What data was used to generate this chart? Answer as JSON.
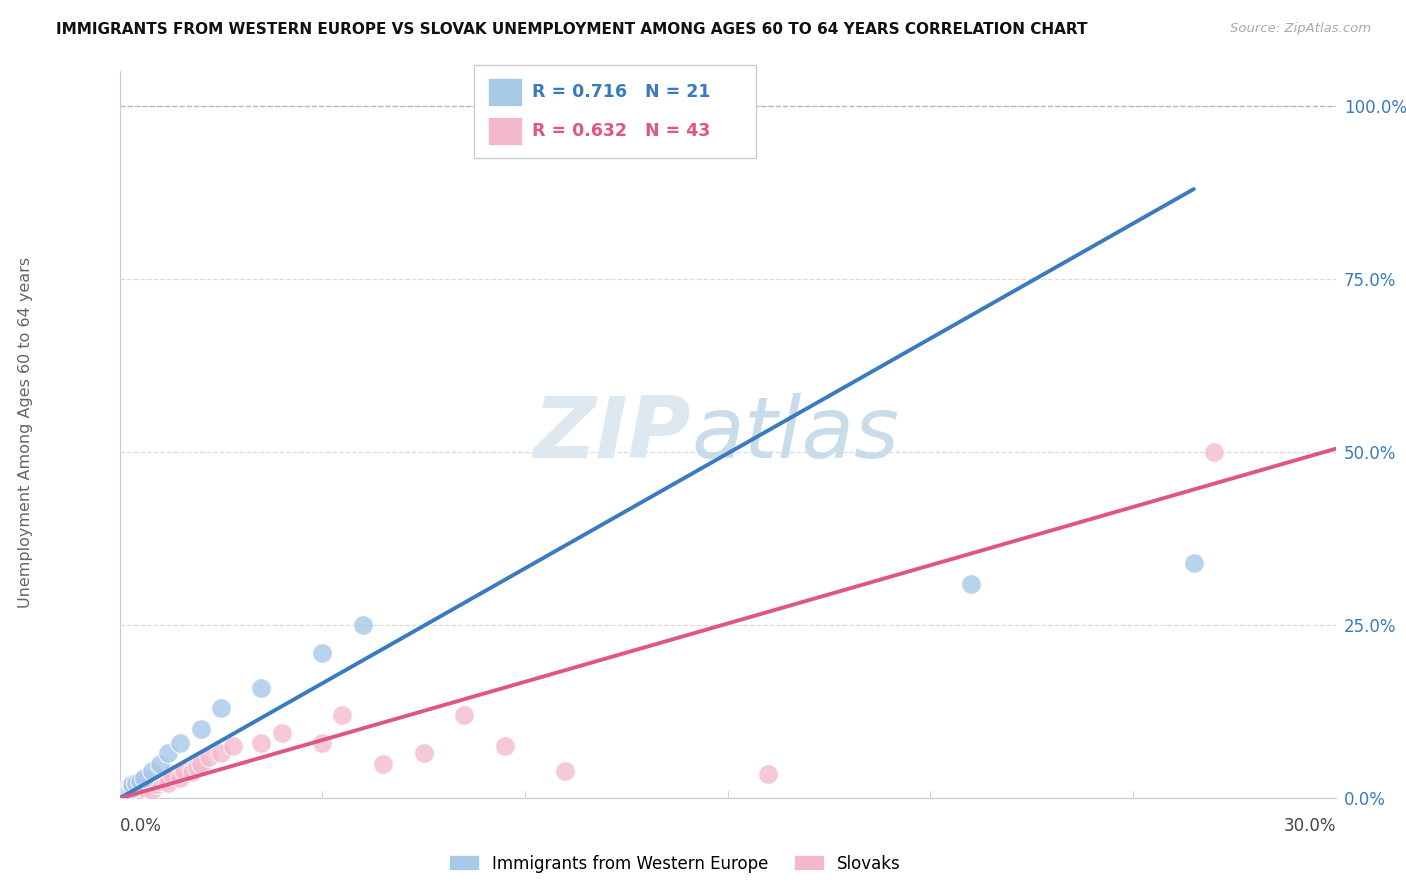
{
  "title": "IMMIGRANTS FROM WESTERN EUROPE VS SLOVAK UNEMPLOYMENT AMONG AGES 60 TO 64 YEARS CORRELATION CHART",
  "source": "Source: ZipAtlas.com",
  "ylabel": "Unemployment Among Ages 60 to 64 years",
  "xmin": 0.0,
  "xmax": 0.3,
  "ymin": 0.0,
  "ymax": 1.05,
  "yticks": [
    0.0,
    0.25,
    0.5,
    0.75,
    1.0
  ],
  "ytick_labels": [
    "0.0%",
    "25.0%",
    "50.0%",
    "75.0%",
    "100.0%"
  ],
  "legend_blue_r": "R = 0.716",
  "legend_blue_n": "N = 21",
  "legend_pink_r": "R = 0.632",
  "legend_pink_n": "N = 43",
  "blue_color": "#a8c8e8",
  "pink_color": "#f4b8cc",
  "blue_line_color": "#3a7bbf",
  "pink_line_color": "#e05585",
  "blue_scatter_x": [
    0.0005,
    0.001,
    0.0015,
    0.002,
    0.0025,
    0.003,
    0.003,
    0.004,
    0.005,
    0.006,
    0.008,
    0.01,
    0.012,
    0.015,
    0.02,
    0.025,
    0.035,
    0.05,
    0.06,
    0.21,
    0.265
  ],
  "blue_scatter_y": [
    0.004,
    0.006,
    0.008,
    0.01,
    0.012,
    0.015,
    0.02,
    0.022,
    0.025,
    0.03,
    0.04,
    0.05,
    0.065,
    0.08,
    0.1,
    0.13,
    0.16,
    0.21,
    0.25,
    0.31,
    0.34
  ],
  "blue_line_x0": 0.0,
  "blue_line_y0": 0.0,
  "blue_line_x1": 0.265,
  "blue_line_y1": 0.88,
  "pink_line_x0": 0.0,
  "pink_line_y0": 0.0,
  "pink_line_x1": 0.3,
  "pink_line_y1": 0.505,
  "pink_scatter_x": [
    0.0005,
    0.0008,
    0.001,
    0.0012,
    0.0015,
    0.002,
    0.002,
    0.0025,
    0.003,
    0.003,
    0.0035,
    0.004,
    0.0045,
    0.005,
    0.005,
    0.006,
    0.007,
    0.008,
    0.008,
    0.009,
    0.01,
    0.011,
    0.012,
    0.013,
    0.015,
    0.016,
    0.018,
    0.019,
    0.02,
    0.022,
    0.025,
    0.028,
    0.035,
    0.04,
    0.05,
    0.055,
    0.065,
    0.075,
    0.085,
    0.095,
    0.11,
    0.16,
    0.27
  ],
  "pink_scatter_y": [
    0.004,
    0.006,
    0.005,
    0.008,
    0.01,
    0.005,
    0.015,
    0.012,
    0.005,
    0.018,
    0.01,
    0.012,
    0.02,
    0.008,
    0.022,
    0.015,
    0.02,
    0.012,
    0.025,
    0.02,
    0.025,
    0.03,
    0.022,
    0.035,
    0.03,
    0.04,
    0.038,
    0.045,
    0.05,
    0.06,
    0.065,
    0.075,
    0.08,
    0.095,
    0.08,
    0.12,
    0.05,
    0.065,
    0.12,
    0.075,
    0.04,
    0.035,
    0.5
  ],
  "dashed_top_line_x": [
    0.0,
    0.3
  ],
  "dashed_top_line_y": [
    1.0,
    1.0
  ],
  "background_color": "#ffffff",
  "grid_color": "#d8d8d8",
  "watermark_color": "#e8eef4",
  "watermark_text": "ZIPatlas"
}
